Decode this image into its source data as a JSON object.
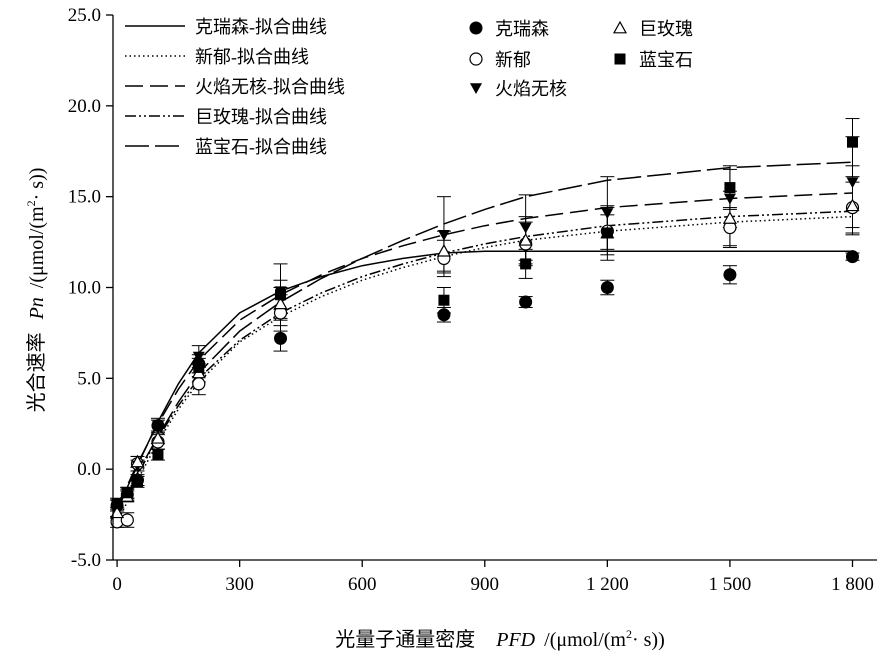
{
  "chart_data": {
    "type": "scatter",
    "xlabel_cn": "光量子通量密度",
    "xlabel_var": "PFD",
    "xlabel_unit_pre": "/(μmol/(m",
    "xlabel_unit_sup": "2",
    "xlabel_unit_post": "· s))",
    "ylabel_cn": "光合速率",
    "ylabel_var": "Pn",
    "ylabel_unit_pre": "/(μmol/(m",
    "ylabel_unit_sup": "2",
    "ylabel_unit_post": "· s))",
    "xlim": [
      -10,
      1860
    ],
    "ylim": [
      -5,
      25
    ],
    "xticks": [
      0,
      300,
      600,
      900,
      1200,
      1500,
      1800
    ],
    "xtick_labels": [
      "0",
      "300",
      "600",
      "900",
      "1 200",
      "1 500",
      "1 800"
    ],
    "yticks": [
      -5,
      0,
      5,
      10,
      15,
      20,
      25
    ],
    "ytick_labels": [
      "-5.0",
      "0.0",
      "5.0",
      "10.0",
      "15.0",
      "20.0",
      "25.0"
    ],
    "x": [
      0,
      25,
      50,
      100,
      200,
      400,
      800,
      1000,
      1200,
      1500,
      1800
    ],
    "series": [
      {
        "name": "克瑞森",
        "marker": "circle-filled",
        "values": [
          -2.0,
          -1.4,
          -0.6,
          2.4,
          5.8,
          7.2,
          8.5,
          9.2,
          10.0,
          10.7,
          11.7
        ],
        "err": [
          0.3,
          0.3,
          0.3,
          0.3,
          0.5,
          0.7,
          0.4,
          0.3,
          0.4,
          0.5,
          0.2
        ]
      },
      {
        "name": "新郁",
        "marker": "circle-open",
        "values": [
          -2.9,
          -2.8,
          0.3,
          1.5,
          4.7,
          8.6,
          11.6,
          12.4,
          13.1,
          13.3,
          14.4
        ],
        "err": [
          0.3,
          0.4,
          0.4,
          0.4,
          0.6,
          1.0,
          1.0,
          1.2,
          1.3,
          1.1,
          1.4
        ]
      },
      {
        "name": "火焰无核",
        "marker": "triangle-down-filled",
        "values": [
          -2.0,
          -1.3,
          0.2,
          2.4,
          6.2,
          9.8,
          12.9,
          13.3,
          14.1,
          14.9,
          15.8
        ],
        "err": [
          0.3,
          0.3,
          0.3,
          0.4,
          0.6,
          1.5,
          2.1,
          1.8,
          2.0,
          1.6,
          2.5
        ]
      },
      {
        "name": "巨玫瑰",
        "marker": "triangle-up-open",
        "values": [
          -2.4,
          -1.5,
          0.4,
          1.7,
          5.3,
          9.1,
          12.0,
          12.6,
          13.0,
          13.8,
          14.5
        ],
        "err": [
          0.3,
          0.3,
          0.3,
          0.3,
          0.5,
          0.9,
          1.1,
          1.3,
          1.5,
          1.5,
          1.6
        ]
      },
      {
        "name": "蓝宝石",
        "marker": "square-filled",
        "values": [
          -1.9,
          -1.3,
          -0.7,
          0.8,
          5.6,
          9.6,
          9.3,
          11.3,
          13.0,
          15.5,
          18.0
        ],
        "err": [
          0.3,
          0.3,
          0.3,
          0.3,
          0.5,
          0.8,
          0.7,
          0.8,
          1.0,
          1.2,
          1.3
        ]
      }
    ],
    "fits": [
      {
        "name": "克瑞森-拟合曲线",
        "style": "solid",
        "x": [
          0,
          25,
          50,
          100,
          150,
          200,
          300,
          400,
          500,
          600,
          700,
          800,
          900,
          1000,
          1200,
          1500,
          1800
        ],
        "y": [
          -2.0,
          -1.0,
          0.2,
          2.6,
          4.7,
          6.4,
          8.6,
          9.8,
          10.6,
          11.2,
          11.6,
          11.9,
          12.0,
          12.0,
          12.0,
          12.0,
          12.0
        ]
      },
      {
        "name": "新郁-拟合曲线",
        "style": "dotted",
        "x": [
          0,
          25,
          50,
          100,
          150,
          200,
          300,
          400,
          500,
          600,
          700,
          800,
          900,
          1000,
          1200,
          1500,
          1800
        ],
        "y": [
          -2.9,
          -1.8,
          -0.6,
          1.5,
          3.3,
          4.8,
          7.0,
          8.4,
          9.5,
          10.4,
          11.1,
          11.7,
          12.2,
          12.6,
          13.1,
          13.6,
          13.9
        ]
      },
      {
        "name": "火焰无核-拟合曲线",
        "style": "long-dash",
        "x": [
          0,
          25,
          50,
          100,
          150,
          200,
          300,
          400,
          500,
          600,
          700,
          800,
          900,
          1000,
          1200,
          1500,
          1800
        ],
        "y": [
          -2.0,
          -0.9,
          0.3,
          2.5,
          4.4,
          6.0,
          8.2,
          9.6,
          10.7,
          11.6,
          12.3,
          12.9,
          13.4,
          13.8,
          14.4,
          14.9,
          15.2
        ]
      },
      {
        "name": "巨玫瑰-拟合曲线",
        "style": "dash-dot-dot",
        "x": [
          0,
          25,
          50,
          100,
          150,
          200,
          300,
          400,
          500,
          600,
          700,
          800,
          900,
          1000,
          1200,
          1500,
          1800
        ],
        "y": [
          -2.4,
          -1.4,
          -0.3,
          1.7,
          3.5,
          5.0,
          7.1,
          8.6,
          9.7,
          10.6,
          11.3,
          11.9,
          12.4,
          12.8,
          13.4,
          13.9,
          14.2
        ]
      },
      {
        "name": "蓝宝石-拟合曲线",
        "style": "dash",
        "x": [
          0,
          25,
          50,
          100,
          150,
          200,
          300,
          400,
          500,
          600,
          700,
          800,
          900,
          1000,
          1200,
          1500,
          1800
        ],
        "y": [
          -2.3,
          -1.3,
          -0.2,
          1.8,
          3.7,
          5.3,
          7.6,
          9.2,
          10.5,
          11.6,
          12.6,
          13.5,
          14.3,
          15.0,
          15.9,
          16.6,
          16.9
        ]
      }
    ],
    "legend_lines_placement": "top-left",
    "legend_markers_placement": "top-right",
    "grid": false
  }
}
